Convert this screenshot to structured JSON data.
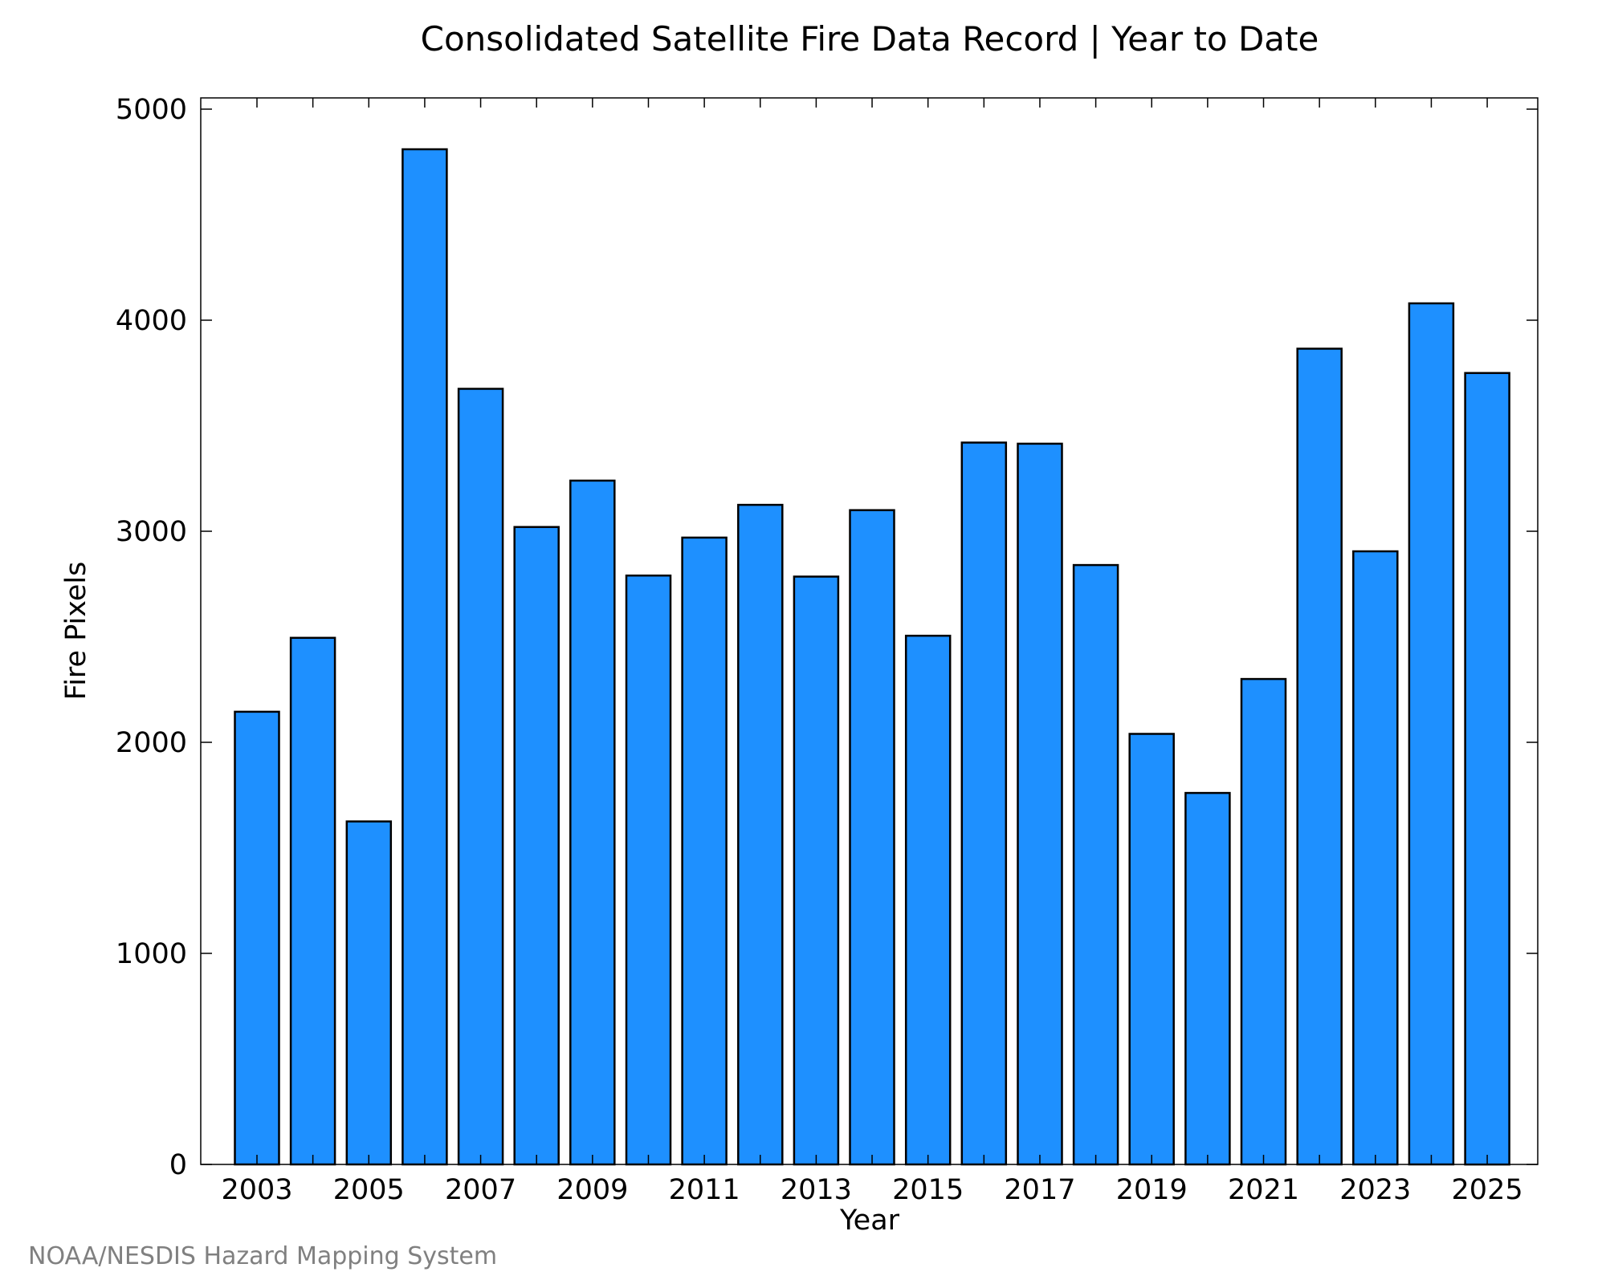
{
  "chart_data": {
    "type": "bar",
    "title": "Consolidated Satellite Fire Data Record | Year to Date",
    "xlabel": "Year",
    "ylabel": "Fire Pixels",
    "categories": [
      "2003",
      "2004",
      "2005",
      "2006",
      "2007",
      "2008",
      "2009",
      "2010",
      "2011",
      "2012",
      "2013",
      "2014",
      "2015",
      "2016",
      "2017",
      "2018",
      "2019",
      "2020",
      "2021",
      "2022",
      "2023",
      "2024",
      "2025"
    ],
    "values": [
      2145,
      2495,
      1625,
      4810,
      3675,
      3020,
      3240,
      2790,
      2970,
      3125,
      2785,
      3100,
      2505,
      3420,
      3415,
      2840,
      2040,
      1760,
      2300,
      3865,
      2905,
      4080,
      3750
    ],
    "x_tick_labels": [
      "2003",
      "2005",
      "2007",
      "2009",
      "2011",
      "2013",
      "2015",
      "2017",
      "2019",
      "2021",
      "2023",
      "2025"
    ],
    "y_tick_labels": [
      "0",
      "1000",
      "2000",
      "3000",
      "4000",
      "5000"
    ],
    "ylim": [
      0,
      5000
    ],
    "bar_color": "#1e90ff",
    "edge_color": "#000000",
    "grid": false
  },
  "footer": {
    "credit": "NOAA/NESDIS Hazard Mapping System"
  }
}
